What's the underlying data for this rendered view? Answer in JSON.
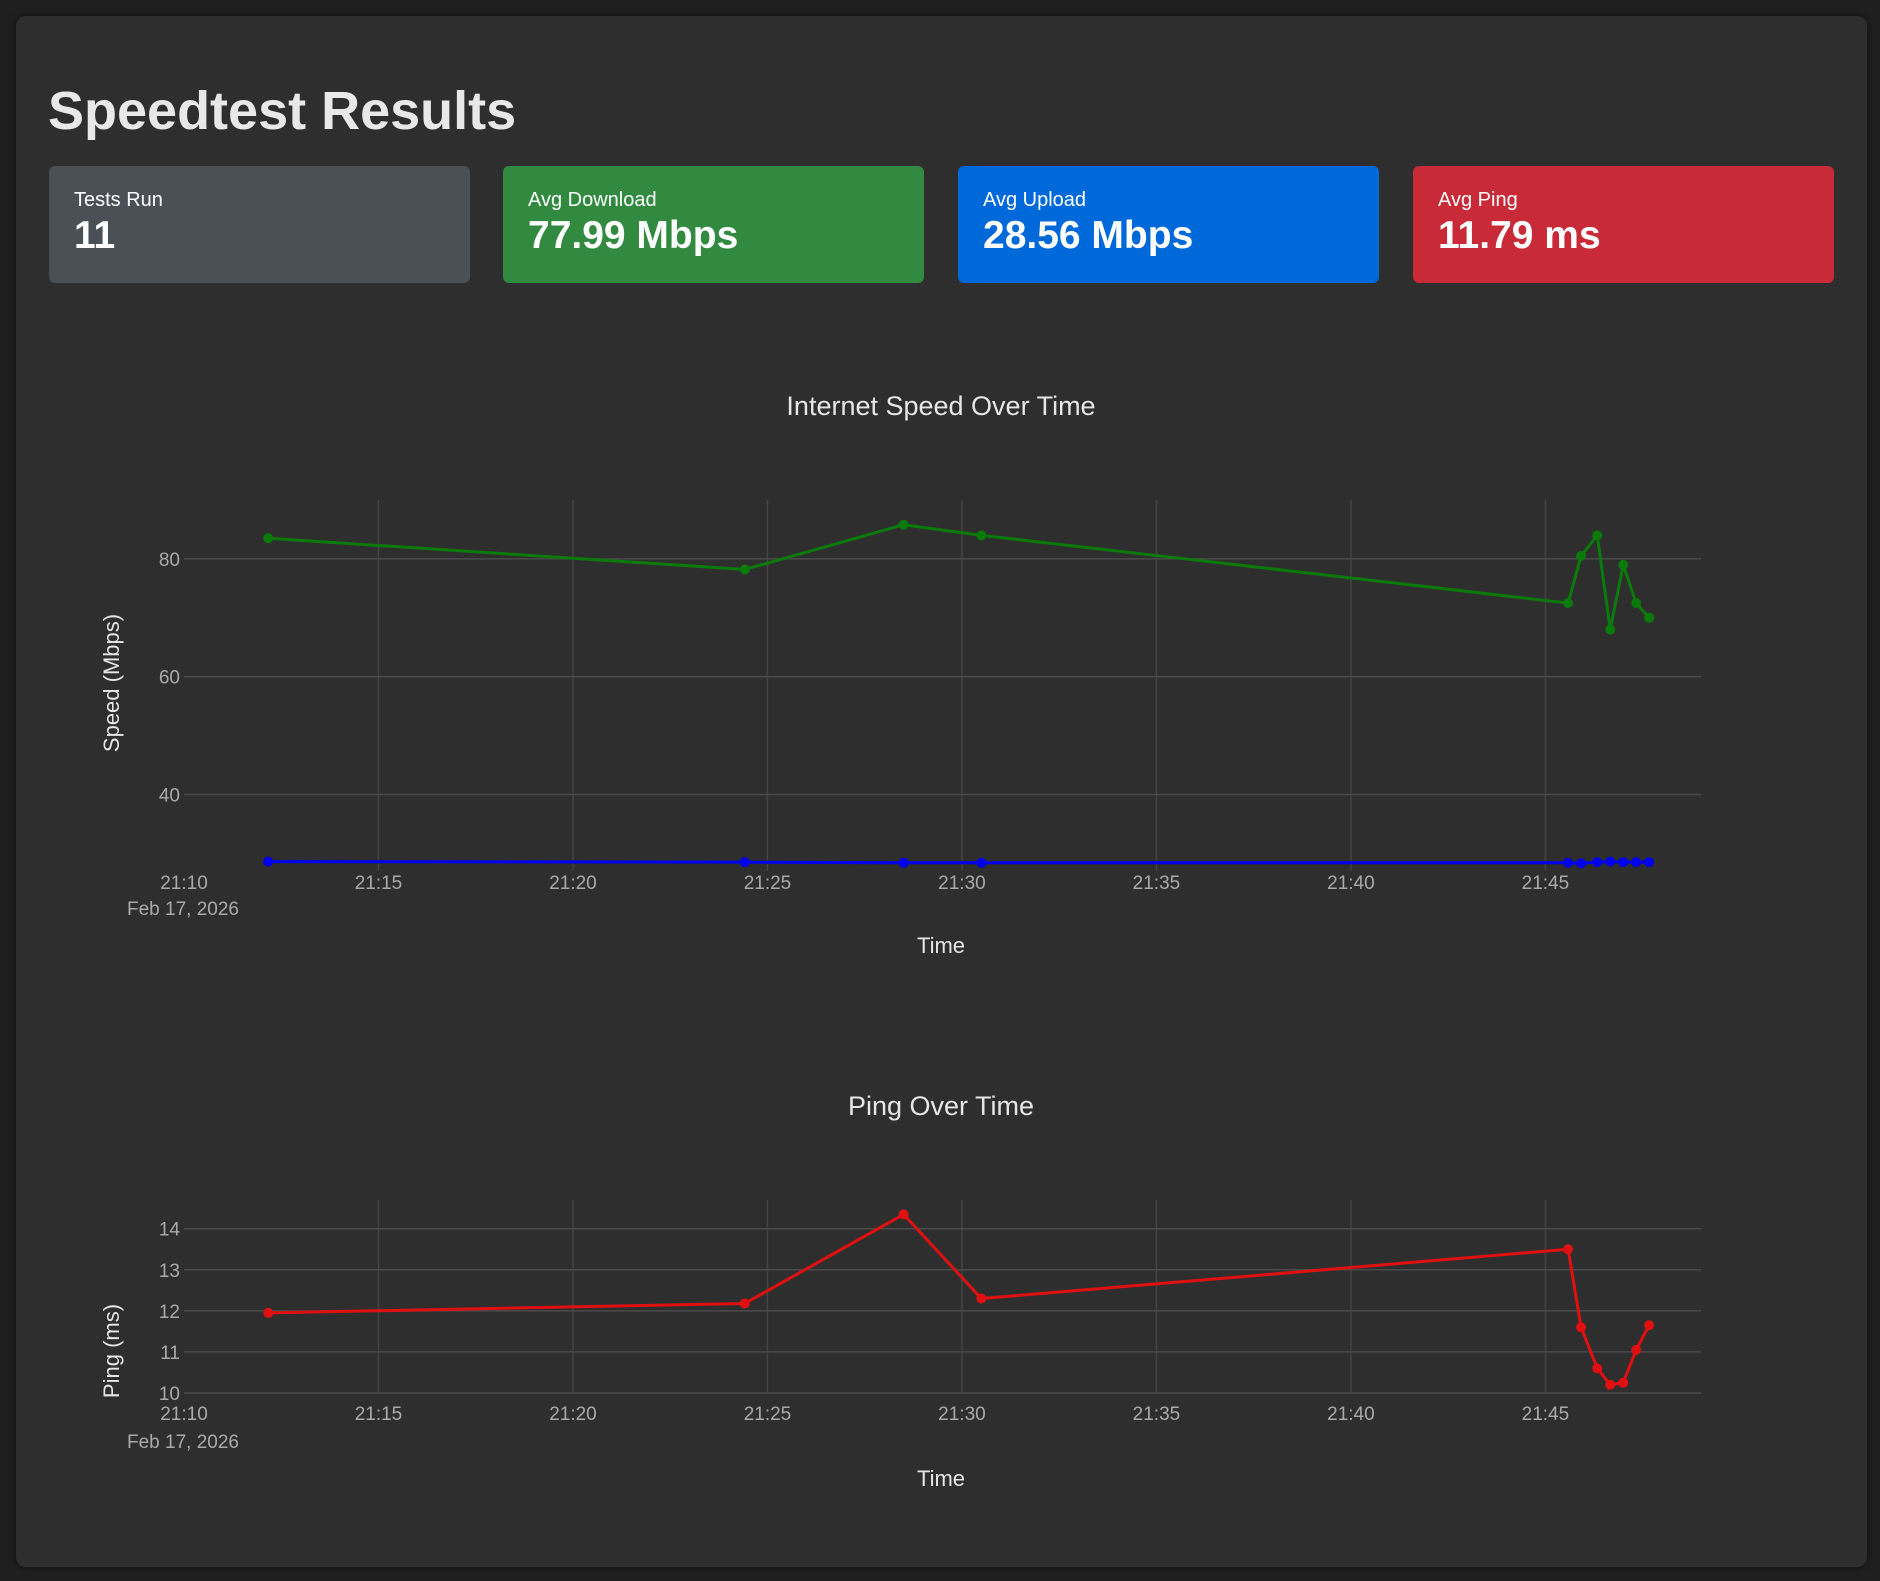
{
  "page": {
    "title": "Speedtest Results"
  },
  "summary": {
    "tests_run": {
      "label": "Tests Run",
      "value": "11",
      "color": "#4b5057"
    },
    "avg_download": {
      "label": "Avg Download",
      "value": "77.99 Mbps",
      "color": "#318a3f"
    },
    "avg_upload": {
      "label": "Avg Upload",
      "value": "28.56 Mbps",
      "color": "#0069d9"
    },
    "avg_ping": {
      "label": "Avg Ping",
      "value": "11.79 ms",
      "color": "#c82a37"
    }
  },
  "chart_data": [
    {
      "type": "line",
      "title": "Internet Speed Over Time",
      "xlabel": "Time",
      "ylabel": "Speed (Mbps)",
      "x_tick_labels": [
        "21:10",
        "21:15",
        "21:20",
        "21:25",
        "21:30",
        "21:35",
        "21:40",
        "21:45"
      ],
      "x_date_label": "Feb 17, 2026",
      "y_ticks": [
        40,
        60,
        80
      ],
      "xlim": [
        "21:10",
        "21:49"
      ],
      "ylim": [
        27,
        90
      ],
      "grid": true,
      "x": [
        "21:12:10",
        "21:24:25",
        "21:28:30",
        "21:30:30",
        "21:45:35",
        "21:45:55",
        "21:46:20",
        "21:46:40",
        "21:47:00",
        "21:47:20",
        "21:47:40"
      ],
      "series": [
        {
          "color": "#0a7a0a",
          "values": [
            83.5,
            78.2,
            85.8,
            84.0,
            72.5,
            80.5,
            84.0,
            68.0,
            79.0,
            72.5,
            70.0
          ]
        },
        {
          "color": "#0000ee",
          "values": [
            28.6,
            28.5,
            28.4,
            28.4,
            28.4,
            28.3,
            28.5,
            28.6,
            28.5,
            28.5,
            28.5
          ]
        }
      ]
    },
    {
      "type": "line",
      "title": "Ping Over Time",
      "xlabel": "Time",
      "ylabel": "Ping (ms)",
      "x_tick_labels": [
        "21:10",
        "21:15",
        "21:20",
        "21:25",
        "21:30",
        "21:35",
        "21:40",
        "21:45"
      ],
      "x_date_label": "Feb 17, 2026",
      "y_ticks": [
        10,
        11,
        12,
        13,
        14
      ],
      "xlim": [
        "21:10",
        "21:49"
      ],
      "ylim": [
        10,
        14.7
      ],
      "grid": true,
      "x": [
        "21:12:10",
        "21:24:25",
        "21:28:30",
        "21:30:30",
        "21:45:35",
        "21:45:55",
        "21:46:20",
        "21:46:40",
        "21:47:00",
        "21:47:20",
        "21:47:40"
      ],
      "series": [
        {
          "color": "#e01010",
          "values": [
            11.95,
            12.18,
            14.35,
            12.3,
            13.5,
            11.6,
            10.6,
            10.2,
            10.25,
            11.05,
            11.65
          ]
        }
      ]
    }
  ]
}
